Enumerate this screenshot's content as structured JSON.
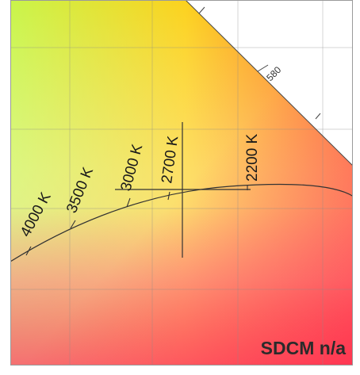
{
  "chart": {
    "wavelength_label": "580",
    "cct_labels": [
      "4000 K",
      "3500 K",
      "3000 K",
      "2700 K",
      "2200 K"
    ],
    "status": "SDCM n/a"
  }
}
